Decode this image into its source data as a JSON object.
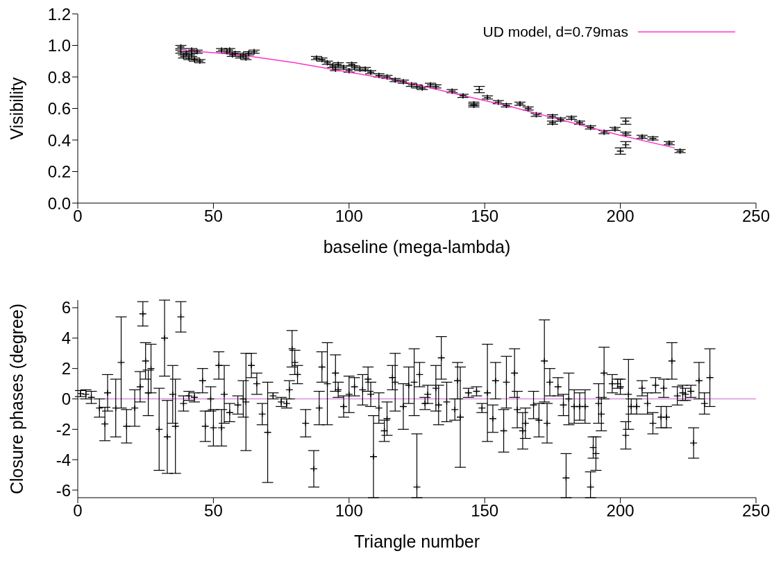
{
  "chart_data": [
    {
      "type": "scatter",
      "xlabel": "baseline (mega-lambda)",
      "ylabel": "Visibility",
      "xlim": [
        0,
        250
      ],
      "xticks": [
        0,
        50,
        100,
        150,
        200,
        250
      ],
      "ylim": [
        0,
        1.2
      ],
      "yticks": [
        {
          "value": 0,
          "label": "0.0"
        },
        {
          "value": 0.2,
          "label": "0.2"
        },
        {
          "value": 0.4,
          "label": "0.4"
        },
        {
          "value": 0.6,
          "label": "0.6"
        },
        {
          "value": 0.8,
          "label": "0.8"
        },
        {
          "value": 1,
          "label": "1.0"
        },
        {
          "value": 1.2,
          "label": "1.2"
        }
      ],
      "legend": "top right",
      "grid": false,
      "series": [
        {
          "type": "scatter",
          "color": "#000000",
          "marker": "cross",
          "x": [
            38,
            38,
            39,
            40,
            41,
            42,
            42,
            43,
            44,
            45,
            53,
            55,
            56,
            57,
            58,
            60,
            61,
            62,
            63,
            65,
            88,
            90,
            92,
            94,
            95,
            96,
            98,
            100,
            101,
            102,
            104,
            106,
            108,
            111,
            114,
            117,
            120,
            123,
            125,
            127,
            130,
            132,
            138,
            142,
            146,
            146,
            148,
            151,
            155,
            158,
            163,
            166,
            169,
            175,
            175,
            178,
            182,
            185,
            189,
            194,
            198,
            200,
            202,
            202,
            202,
            208,
            212,
            218,
            222
          ],
          "values": [
            0.99,
            0.96,
            0.93,
            0.95,
            0.92,
            0.94,
            0.97,
            0.91,
            0.96,
            0.9,
            0.97,
            0.96,
            0.97,
            0.94,
            0.95,
            0.93,
            0.94,
            0.92,
            0.95,
            0.96,
            0.92,
            0.91,
            0.89,
            0.87,
            0.85,
            0.88,
            0.86,
            0.84,
            0.88,
            0.86,
            0.85,
            0.85,
            0.83,
            0.81,
            0.8,
            0.78,
            0.77,
            0.75,
            0.74,
            0.73,
            0.75,
            0.74,
            0.71,
            0.68,
            0.63,
            0.62,
            0.72,
            0.67,
            0.64,
            0.62,
            0.63,
            0.6,
            0.56,
            0.55,
            0.51,
            0.53,
            0.54,
            0.51,
            0.48,
            0.45,
            0.47,
            0.33,
            0.44,
            0.52,
            0.37,
            0.42,
            0.41,
            0.38,
            0.33
          ],
          "errors": [
            0.01,
            0.01,
            0.01,
            0.01,
            0.01,
            0.01,
            0.01,
            0.01,
            0.01,
            0.01,
            0.01,
            0.01,
            0.01,
            0.01,
            0.01,
            0.01,
            0.01,
            0.01,
            0.01,
            0.01,
            0.01,
            0.01,
            0.01,
            0.01,
            0.01,
            0.01,
            0.01,
            0.01,
            0.01,
            0.01,
            0.01,
            0.01,
            0.01,
            0.01,
            0.01,
            0.01,
            0.01,
            0.01,
            0.01,
            0.01,
            0.01,
            0.01,
            0.01,
            0.01,
            0.01,
            0.01,
            0.02,
            0.01,
            0.01,
            0.01,
            0.01,
            0.01,
            0.01,
            0.01,
            0.01,
            0.01,
            0.01,
            0.01,
            0.01,
            0.01,
            0.01,
            0.02,
            0.01,
            0.02,
            0.02,
            0.01,
            0.01,
            0.01,
            0.01
          ]
        },
        {
          "type": "line",
          "name": "UD model, d=0.79mas",
          "color": "#ff33cc",
          "x": [
            38,
            60,
            80,
            100,
            120,
            140,
            160,
            180,
            200,
            220
          ],
          "values": [
            0.97,
            0.94,
            0.89,
            0.83,
            0.77,
            0.69,
            0.61,
            0.52,
            0.43,
            0.35
          ]
        }
      ]
    },
    {
      "type": "scatter",
      "xlabel": "Triangle number",
      "ylabel": "Closure phases (degree)",
      "xlim": [
        0,
        250
      ],
      "xticks": [
        0,
        50,
        100,
        150,
        200,
        250
      ],
      "ylim": [
        -6.5,
        6.5
      ],
      "yticks": [
        -6,
        -4,
        -2,
        0,
        2,
        4,
        6
      ],
      "grid": false,
      "ref_lines": [
        {
          "axis": "y",
          "value": 0,
          "color": "#cc66cc"
        }
      ],
      "series": [
        {
          "type": "scatter",
          "color": "#000000",
          "marker": "cross",
          "x": [
            1,
            3,
            5,
            8,
            10,
            11,
            14,
            16,
            18,
            21,
            23,
            24,
            25,
            26,
            27,
            30,
            32,
            33,
            35,
            36,
            38,
            39,
            41,
            43,
            46,
            47,
            49,
            50,
            52,
            53,
            54,
            56,
            59,
            61,
            62,
            64,
            66,
            68,
            70,
            72,
            75,
            77,
            78,
            79,
            80,
            81,
            84,
            87,
            89,
            90,
            92,
            95,
            96,
            98,
            100,
            102,
            105,
            107,
            108,
            109,
            111,
            113,
            114,
            116,
            117,
            120,
            122,
            124,
            125,
            126,
            128,
            129,
            132,
            133,
            134,
            136,
            139,
            140,
            141,
            144,
            147,
            149,
            151,
            153,
            154,
            157,
            158,
            161,
            162,
            164,
            165,
            168,
            170,
            172,
            173,
            174,
            177,
            179,
            180,
            181,
            183,
            185,
            187,
            189,
            190,
            191,
            192,
            193,
            194,
            197,
            199,
            200,
            202,
            203,
            204,
            206,
            208,
            210,
            212,
            213,
            215,
            216,
            217,
            219,
            221,
            223,
            224,
            226,
            227,
            229,
            231,
            233
          ],
          "values": [
            0.35,
            0.3,
            0.1,
            -0.6,
            -1.65,
            0.4,
            -0.6,
            2.4,
            -1.8,
            -0.6,
            0.8,
            5.6,
            2.5,
            0.4,
            2,
            -2,
            4,
            -2.5,
            0.3,
            -1.8,
            5.4,
            -0.3,
            0.2,
            0.1,
            1.2,
            -1.8,
            0,
            -1.9,
            2.2,
            -1.9,
            0.3,
            -0.9,
            -0.4,
            0,
            -0.2,
            2.2,
            1,
            -1,
            -2.2,
            0.2,
            -0.2,
            -0.3,
            0.6,
            3.3,
            2.4,
            1.6,
            -1.6,
            -4.6,
            -0.6,
            2.1,
            1,
            1.7,
            0.6,
            -0.5,
            0.3,
            0.8,
            0.6,
            1.3,
            0.3,
            -3.8,
            -0.6,
            -2.1,
            -1.3,
            1.4,
            1.1,
            -0.5,
            0.9,
            1.1,
            -5.8,
            1.6,
            -0.3,
            0.3,
            0.7,
            -0.4,
            2.7,
            -0.2,
            -0.7,
            1.2,
            -1.2,
            0.4,
            0.5,
            -0.6,
            0.4,
            -1.3,
            1.2,
            -2.1,
            1.1,
            1.7,
            -0.7,
            -2.1,
            -1.6,
            -0.4,
            -1.4,
            2.5,
            -1.6,
            1.1,
            0.8,
            -0.4,
            -5.2,
            0,
            -0.5,
            -0.5,
            -0.5,
            -5.8,
            -3.2,
            -3.6,
            -0.3,
            -1,
            1.7,
            1,
            1,
            0.8,
            -2.4,
            0.3,
            -0.5,
            -0.5,
            0.7,
            -0.3,
            -1.6,
            0.9,
            -1.2,
            0.7,
            -1.2,
            2.5,
            0.2,
            0.4,
            0.3,
            0.5,
            -2.9,
            1.2,
            -0.3,
            1.4
          ],
          "errors": [
            0.2,
            0.3,
            0.4,
            0.6,
            1.1,
            1.2,
            1.9,
            3,
            1.1,
            1.2,
            1,
            0.8,
            1.2,
            1.5,
            1.6,
            2.7,
            2.5,
            2.4,
            1.9,
            3.1,
            1,
            0.5,
            0.3,
            0.3,
            0.8,
            1,
            0.8,
            1.2,
            0.9,
            1.2,
            1.9,
            0.6,
            0.6,
            1.2,
            3.2,
            0.8,
            0.7,
            0.7,
            3.3,
            0.2,
            0.3,
            0.3,
            0.6,
            1.2,
            0.8,
            0.6,
            0.9,
            1.2,
            1.1,
            1,
            2.7,
            1.2,
            0.5,
            0.7,
            1.2,
            0.6,
            1,
            0.8,
            0.8,
            2.7,
            1,
            0.7,
            1.1,
            0.8,
            1.9,
            1.5,
            1.2,
            2.2,
            [
              -6.5,
              -2.3
            ],
            0.8,
            0.4,
            0.6,
            1.5,
            1.3,
            1.4,
            1.3,
            0.7,
            1.2,
            [
              -4.5,
              2.1
            ],
            0.3,
            0.3,
            0.3,
            3.2,
            0.9,
            1.2,
            1.4,
            1.7,
            1.6,
            1.2,
            1.2,
            1,
            0.9,
            1.1,
            2.7,
            1.3,
            0.9,
            0.6,
            0.7,
            [
              -6.5,
              -3.6
            ],
            1.7,
            1.1,
            0.9,
            1.1,
            [
              -6.5,
              -4.8
            ],
            0.7,
            1.1,
            1.3,
            1.1,
            1.7,
            0.6,
            0.3,
            0.5,
            0.9,
            2.3,
            0.5,
            0.5,
            0.5,
            0.7,
            0.7,
            0.5,
            0.7,
            0.6,
            0.7,
            1.2,
            0.6,
            0.5,
            0.4,
            0.4,
            1,
            1.2,
            0.7,
            1.9
          ]
        }
      ]
    }
  ]
}
